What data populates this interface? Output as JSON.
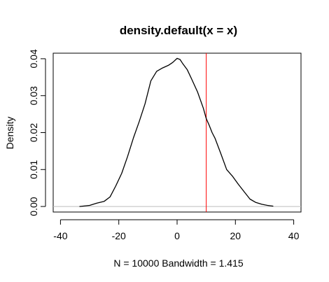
{
  "chart_data": {
    "type": "line",
    "title": "density.default(x = x)",
    "xlabel": "N = 10000   Bandwidth = 1.415",
    "ylabel": "Density",
    "xlim": [
      -42.5,
      42.5
    ],
    "ylim": [
      -0.0015,
      0.0415
    ],
    "x_ticks": [
      -40,
      -20,
      0,
      20,
      40
    ],
    "y_ticks": [
      0.0,
      0.01,
      0.02,
      0.03,
      0.04
    ],
    "x_tick_labels": [
      "-40",
      "-20",
      "0",
      "20",
      "40"
    ],
    "y_tick_labels": [
      "0.00",
      "0.01",
      "0.02",
      "0.03",
      "0.04"
    ],
    "grid": false,
    "series": [
      {
        "color": "#000000",
        "x": [
          -33.5,
          -30,
          -27.5,
          -25,
          -23,
          -21,
          -19,
          -17,
          -15,
          -13,
          -11,
          -9,
          -7,
          -5,
          -3,
          -1.5,
          0,
          1,
          2,
          3.5,
          5,
          7,
          9,
          10,
          11,
          12,
          13,
          15,
          17,
          19,
          21,
          23,
          25,
          27,
          29,
          31,
          33
        ],
        "y": [
          0.0,
          0.0003,
          0.0009,
          0.0014,
          0.0026,
          0.0056,
          0.009,
          0.0135,
          0.0185,
          0.023,
          0.0278,
          0.034,
          0.0366,
          0.0375,
          0.0382,
          0.039,
          0.0401,
          0.0398,
          0.0386,
          0.037,
          0.0345,
          0.031,
          0.0266,
          0.0238,
          0.022,
          0.02,
          0.0185,
          0.0143,
          0.01,
          0.0082,
          0.006,
          0.004,
          0.002,
          0.0011,
          0.0006,
          0.0003,
          0.0001
        ]
      }
    ],
    "reference_lines": [
      {
        "orientation": "horizontal",
        "value": 0,
        "color": "#bebebe"
      },
      {
        "orientation": "vertical",
        "value": 10,
        "color": "#ff0000"
      }
    ]
  }
}
